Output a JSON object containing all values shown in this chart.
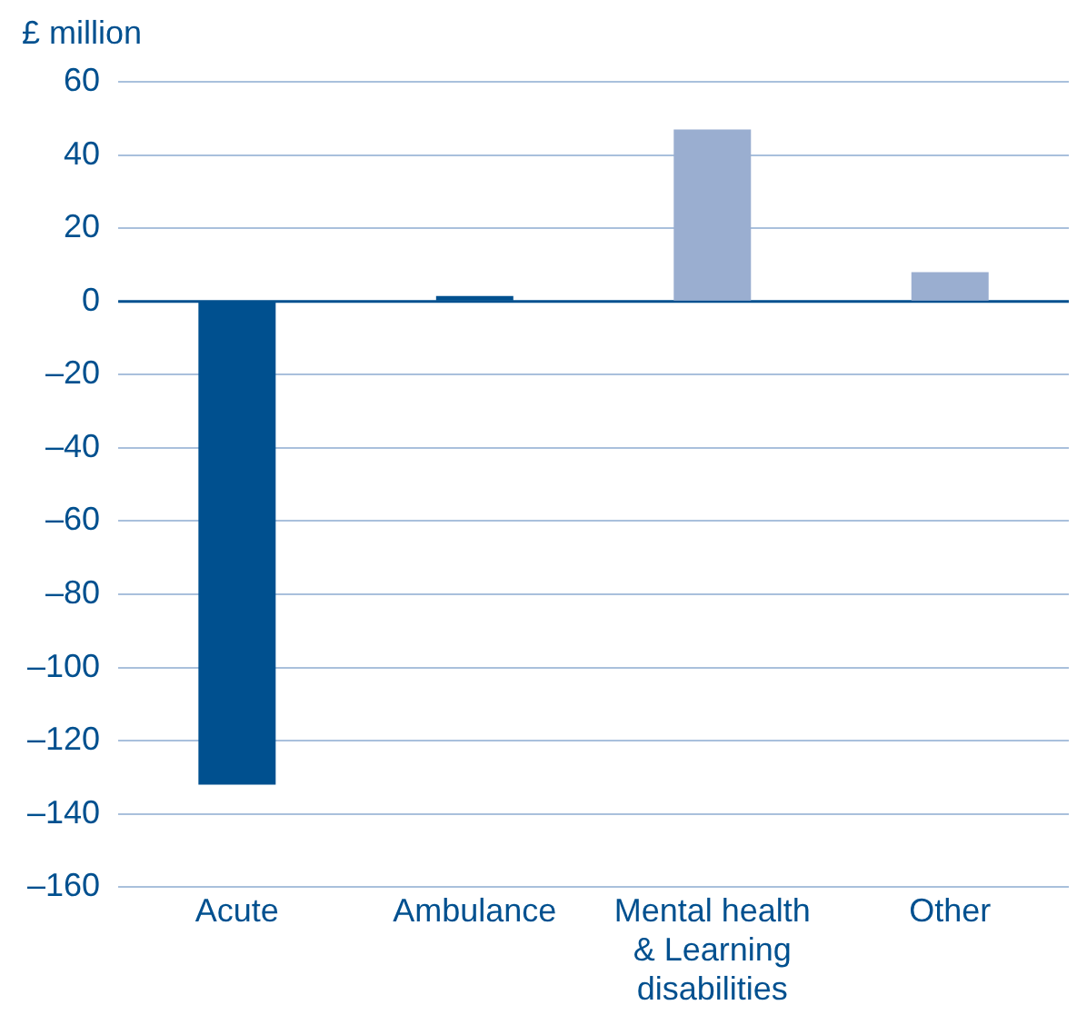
{
  "chart_data": {
    "type": "bar",
    "ylabel": "£ million",
    "categories": [
      "Acute",
      "Ambulance",
      "Mental health & Learning disabilities",
      "Other"
    ],
    "values": [
      -132,
      1.5,
      47,
      8
    ],
    "colors": [
      "#00508f",
      "#00508f",
      "#9aaed0",
      "#9aaed0"
    ],
    "ylim": [
      -160,
      60
    ],
    "yticks": [
      {
        "value": -160,
        "label": "–160"
      },
      {
        "value": -140,
        "label": "–140"
      },
      {
        "value": -120,
        "label": "–120"
      },
      {
        "value": -100,
        "label": "–100"
      },
      {
        "value": -80,
        "label": "–80"
      },
      {
        "value": -60,
        "label": "–60"
      },
      {
        "value": -40,
        "label": "–40"
      },
      {
        "value": -20,
        "label": "–20"
      },
      0,
      20,
      40,
      60
    ],
    "ref_lines": [
      {
        "axis": "y",
        "value": 0,
        "color": "#00508f"
      }
    ],
    "grid": "y",
    "legend": false
  }
}
